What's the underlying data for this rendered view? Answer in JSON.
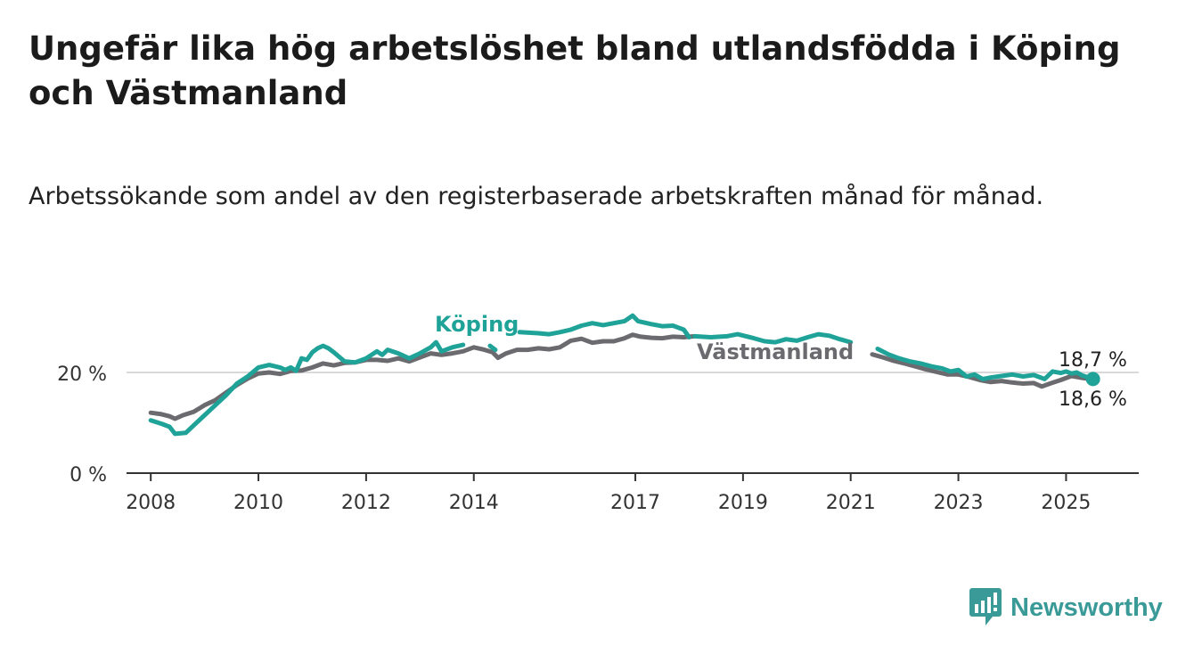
{
  "title": "Ungefär lika hög arbetslöshet bland utlandsfödda i Köping och Västmanland",
  "subtitle": "Arbetssökande som andel av den registerbaserade arbetskraften månad för månad.",
  "brand": {
    "name": "Newsworthy",
    "icon": "newsworthy-logo-icon",
    "color": "#3a9a97"
  },
  "chart_data": {
    "type": "line",
    "ylim": [
      0,
      37
    ],
    "xlim": [
      2007.55,
      2026.35
    ],
    "y_ticks": [
      {
        "value": 0,
        "label": "0 %"
      },
      {
        "value": 20,
        "label": "20 %"
      }
    ],
    "x_ticks": [
      {
        "value": 2008,
        "label": "2008"
      },
      {
        "value": 2010,
        "label": "2010"
      },
      {
        "value": 2012,
        "label": "2012"
      },
      {
        "value": 2014,
        "label": "2014"
      },
      {
        "value": 2017,
        "label": "2017"
      },
      {
        "value": 2019,
        "label": "2019"
      },
      {
        "value": 2021,
        "label": "2021"
      },
      {
        "value": 2023,
        "label": "2023"
      },
      {
        "value": 2025,
        "label": "2025"
      }
    ],
    "grid": "horizontal gridline at 20",
    "series": [
      {
        "name": "Köping",
        "color": "#1fa398",
        "end_label": "18,7 %",
        "points": [
          [
            2008.0,
            10.5
          ],
          [
            2008.2,
            9.8
          ],
          [
            2008.35,
            9.2
          ],
          [
            2008.45,
            7.8
          ],
          [
            2008.65,
            8.0
          ],
          [
            2008.8,
            9.5
          ],
          [
            2009.0,
            11.5
          ],
          [
            2009.2,
            13.5
          ],
          [
            2009.4,
            15.5
          ],
          [
            2009.6,
            17.8
          ],
          [
            2009.8,
            19.2
          ],
          [
            2010.0,
            21.0
          ],
          [
            2010.2,
            21.5
          ],
          [
            2010.4,
            21.0
          ],
          [
            2010.5,
            20.5
          ],
          [
            2010.6,
            21.0
          ],
          [
            2010.7,
            20.3
          ],
          [
            2010.8,
            22.8
          ],
          [
            2010.9,
            22.5
          ],
          [
            2011.0,
            24.0
          ],
          [
            2011.1,
            24.8
          ],
          [
            2011.2,
            25.3
          ],
          [
            2011.3,
            24.8
          ],
          [
            2011.4,
            24.0
          ],
          [
            2011.6,
            22.2
          ],
          [
            2011.8,
            22.0
          ],
          [
            2012.0,
            22.8
          ],
          [
            2012.2,
            24.2
          ],
          [
            2012.3,
            23.5
          ],
          [
            2012.4,
            24.5
          ],
          [
            2012.6,
            23.8
          ],
          [
            2012.8,
            22.8
          ],
          [
            2013.0,
            23.8
          ],
          [
            2013.2,
            25.0
          ],
          [
            2013.3,
            26.0
          ],
          [
            2013.4,
            24.2
          ],
          [
            2013.6,
            25.0
          ],
          [
            2013.8,
            25.5
          ]
        ],
        "points_b": [
          [
            2014.3,
            25.3
          ],
          [
            2014.4,
            24.5
          ]
        ],
        "points_c": [
          [
            2014.85,
            28.0
          ],
          [
            2015.2,
            27.8
          ],
          [
            2015.4,
            27.6
          ],
          [
            2015.6,
            28.0
          ],
          [
            2015.8,
            28.5
          ],
          [
            2016.0,
            29.3
          ],
          [
            2016.2,
            29.8
          ],
          [
            2016.4,
            29.4
          ],
          [
            2016.6,
            29.8
          ],
          [
            2016.8,
            30.2
          ],
          [
            2016.95,
            31.3
          ],
          [
            2017.05,
            30.2
          ],
          [
            2017.3,
            29.6
          ],
          [
            2017.5,
            29.2
          ],
          [
            2017.7,
            29.3
          ],
          [
            2017.9,
            28.5
          ],
          [
            2018.0,
            27.0
          ]
        ],
        "points_d": [
          [
            2018.1,
            27.2
          ],
          [
            2018.4,
            27.0
          ],
          [
            2018.7,
            27.2
          ],
          [
            2018.9,
            27.6
          ],
          [
            2019.2,
            26.8
          ],
          [
            2019.4,
            26.2
          ],
          [
            2019.6,
            26.0
          ],
          [
            2019.8,
            26.6
          ],
          [
            2020.0,
            26.3
          ],
          [
            2020.2,
            27.0
          ],
          [
            2020.4,
            27.6
          ],
          [
            2020.6,
            27.3
          ],
          [
            2020.8,
            26.6
          ],
          [
            2021.0,
            26.0
          ]
        ],
        "points_e": [
          [
            2021.5,
            24.7
          ],
          [
            2021.7,
            23.6
          ],
          [
            2021.9,
            22.8
          ],
          [
            2022.1,
            22.2
          ],
          [
            2022.3,
            21.8
          ],
          [
            2022.5,
            21.2
          ],
          [
            2022.7,
            20.8
          ],
          [
            2022.85,
            20.2
          ],
          [
            2023.0,
            20.5
          ],
          [
            2023.15,
            19.2
          ],
          [
            2023.3,
            19.6
          ],
          [
            2023.45,
            18.7
          ],
          [
            2023.6,
            19.0
          ],
          [
            2023.8,
            19.3
          ],
          [
            2024.0,
            19.6
          ],
          [
            2024.2,
            19.2
          ],
          [
            2024.4,
            19.5
          ],
          [
            2024.6,
            18.7
          ],
          [
            2024.75,
            20.2
          ],
          [
            2024.9,
            19.9
          ],
          [
            2025.0,
            20.2
          ],
          [
            2025.1,
            19.8
          ],
          [
            2025.2,
            20.0
          ],
          [
            2025.3,
            19.4
          ],
          [
            2025.5,
            18.7
          ]
        ]
      },
      {
        "name": "Västmanland",
        "color": "#6b6a6f",
        "end_label": "18,6 %",
        "points": [
          [
            2008.0,
            12.0
          ],
          [
            2008.2,
            11.7
          ],
          [
            2008.35,
            11.3
          ],
          [
            2008.45,
            10.8
          ],
          [
            2008.6,
            11.5
          ],
          [
            2008.8,
            12.2
          ],
          [
            2009.0,
            13.5
          ],
          [
            2009.2,
            14.5
          ],
          [
            2009.4,
            16.0
          ],
          [
            2009.6,
            17.5
          ],
          [
            2009.8,
            18.8
          ],
          [
            2010.0,
            19.8
          ],
          [
            2010.2,
            20.0
          ],
          [
            2010.4,
            19.7
          ],
          [
            2010.6,
            20.3
          ],
          [
            2010.8,
            20.4
          ],
          [
            2011.0,
            21.0
          ],
          [
            2011.2,
            21.8
          ],
          [
            2011.4,
            21.4
          ],
          [
            2011.6,
            21.9
          ],
          [
            2011.8,
            22.0
          ],
          [
            2012.0,
            22.5
          ],
          [
            2012.2,
            22.5
          ],
          [
            2012.4,
            22.3
          ],
          [
            2012.6,
            22.8
          ],
          [
            2012.8,
            22.2
          ],
          [
            2013.0,
            23.0
          ],
          [
            2013.2,
            23.8
          ],
          [
            2013.4,
            23.5
          ],
          [
            2013.6,
            23.8
          ],
          [
            2013.8,
            24.2
          ],
          [
            2014.0,
            25.0
          ],
          [
            2014.2,
            24.5
          ],
          [
            2014.35,
            24.0
          ],
          [
            2014.45,
            22.9
          ],
          [
            2014.6,
            23.8
          ],
          [
            2014.8,
            24.5
          ],
          [
            2015.0,
            24.5
          ],
          [
            2015.2,
            24.8
          ],
          [
            2015.4,
            24.6
          ],
          [
            2015.6,
            25.0
          ],
          [
            2015.8,
            26.3
          ],
          [
            2016.0,
            26.7
          ],
          [
            2016.2,
            25.9
          ],
          [
            2016.4,
            26.2
          ],
          [
            2016.6,
            26.2
          ],
          [
            2016.8,
            26.8
          ],
          [
            2016.95,
            27.5
          ],
          [
            2017.1,
            27.1
          ],
          [
            2017.3,
            26.9
          ],
          [
            2017.5,
            26.8
          ],
          [
            2017.7,
            27.1
          ],
          [
            2017.9,
            27.0
          ],
          [
            2018.1,
            27.2
          ]
        ],
        "points_b": [
          [
            2021.4,
            23.6
          ],
          [
            2021.6,
            23.0
          ],
          [
            2021.8,
            22.3
          ],
          [
            2022.0,
            21.8
          ],
          [
            2022.2,
            21.2
          ],
          [
            2022.4,
            20.6
          ],
          [
            2022.6,
            20.1
          ],
          [
            2022.8,
            19.6
          ],
          [
            2023.0,
            19.6
          ],
          [
            2023.2,
            19.1
          ],
          [
            2023.4,
            18.5
          ],
          [
            2023.6,
            18.1
          ],
          [
            2023.8,
            18.3
          ],
          [
            2024.0,
            18.0
          ],
          [
            2024.2,
            17.8
          ],
          [
            2024.4,
            17.9
          ],
          [
            2024.55,
            17.2
          ],
          [
            2024.7,
            17.8
          ],
          [
            2024.9,
            18.5
          ],
          [
            2025.1,
            19.3
          ],
          [
            2025.3,
            18.9
          ],
          [
            2025.5,
            18.6
          ]
        ],
        "inline_label": "Västmanland"
      }
    ]
  }
}
